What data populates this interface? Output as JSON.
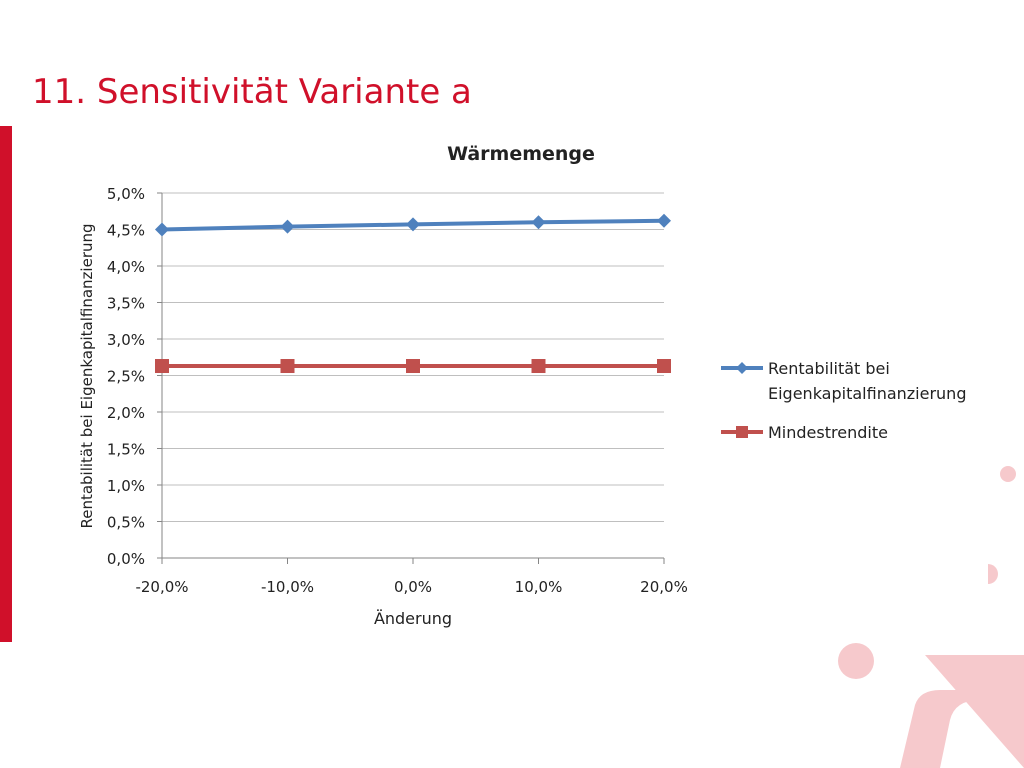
{
  "slide": {
    "title": "11. Sensitivität Variante a"
  },
  "colors": {
    "accent": "#d0102a",
    "decor": "#f6c9cc",
    "series1": "#4f81bd",
    "series2": "#c0504d",
    "grid": "#bfbfbf"
  },
  "chart_data": {
    "type": "line",
    "title": "Wärmemenge",
    "xlabel": "Änderung",
    "ylabel": "Rentabilität bei Eigenkapitalfinanzierung",
    "categories": [
      "-20,0%",
      "-10,0%",
      "0,0%",
      "10,0%",
      "20,0%"
    ],
    "y_ticks": [
      "0,0%",
      "0,5%",
      "1,0%",
      "1,5%",
      "2,0%",
      "2,5%",
      "3,0%",
      "3,5%",
      "4,0%",
      "4,5%",
      "5,0%"
    ],
    "ylim": [
      0,
      5.0
    ],
    "y_unit": "%",
    "grid": true,
    "legend_position": "right",
    "series": [
      {
        "name": "Rentabilität bei Eigenkapitalfinanzierung",
        "legend_lines": [
          "Rentabilität bei",
          "Eigenkapitalfinanzierung"
        ],
        "marker": "diamond",
        "values": [
          4.5,
          4.54,
          4.57,
          4.6,
          4.62
        ]
      },
      {
        "name": "Mindestrendite",
        "legend_lines": [
          "Mindestrendite"
        ],
        "marker": "square",
        "values": [
          2.63,
          2.63,
          2.63,
          2.63,
          2.63
        ]
      }
    ]
  }
}
